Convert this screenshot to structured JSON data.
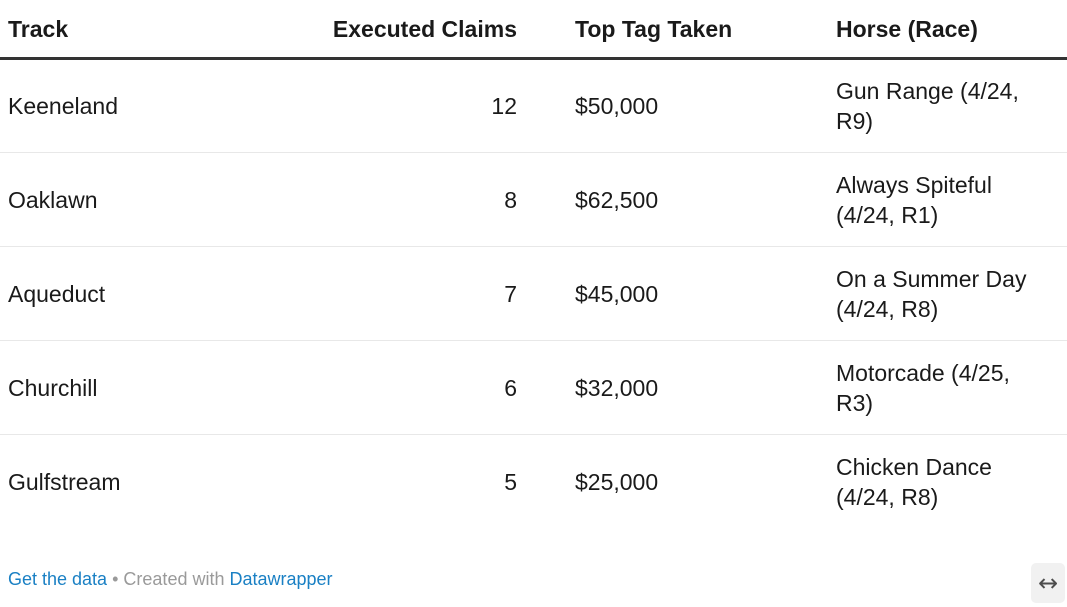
{
  "chart_data": {
    "type": "table",
    "columns": [
      "Track",
      "Executed Claims",
      "Top Tag Taken",
      "Horse (Race)"
    ],
    "rows": [
      [
        "Keeneland",
        "12",
        "$50,000",
        "Gun Range (4/24, R9)"
      ],
      [
        "Oaklawn",
        "8",
        "$62,500",
        "Always Spiteful (4/24, R1)"
      ],
      [
        "Aqueduct",
        "7",
        "$45,000",
        "On a Summer Day (4/24, R8)"
      ],
      [
        "Churchill",
        "6",
        "$32,000",
        "Motorcade (4/25, R3)"
      ],
      [
        "Gulfstream",
        "5",
        "$25,000",
        "Chicken Dance (4/24, R8)"
      ]
    ],
    "layout_hints": {
      "claims_column_align": "right",
      "header_rule": "thick dark",
      "row_divider": "thin light gray"
    }
  },
  "footer": {
    "get_the_data": "Get the data",
    "separator": "•",
    "created_with": "Created with",
    "datawrapper": "Datawrapper"
  },
  "icons": {
    "resize_arrow": "↔"
  },
  "colors": {
    "text": "#1a1a1a",
    "link_blue": "#1a80c4",
    "footer_gray": "#9a9a9a",
    "header_border": "#333333",
    "row_border": "#e8e8e8",
    "resize_button_bg": "#f1f1f1"
  }
}
